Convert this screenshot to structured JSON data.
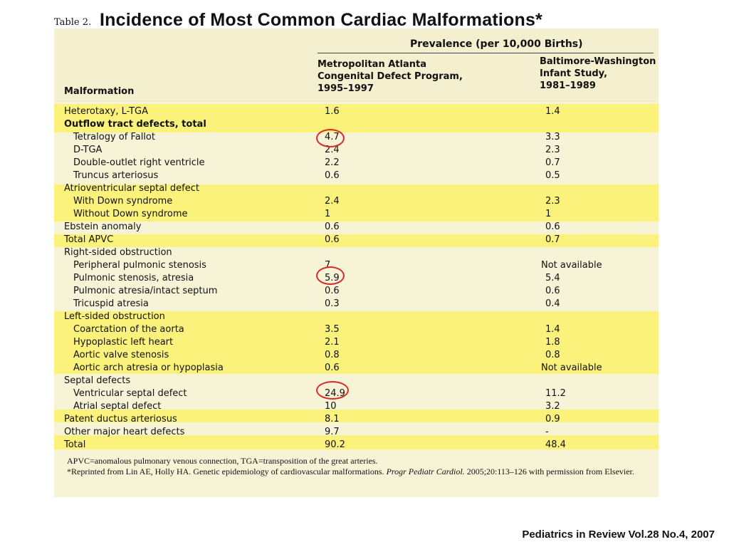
{
  "title": {
    "prefix": "Table 2.",
    "main": "Incidence of Most Common Cardiac Malformations*"
  },
  "header": {
    "prevalence": "Prevalence (per 10,000 Births)",
    "malformation": "Malformation",
    "col1": [
      "Metropolitan Atlanta",
      "Congenital Defect Program,",
      "1995–1997"
    ],
    "col2": [
      "Baltimore-Washington",
      "Infant Study,",
      "1981–1989"
    ]
  },
  "rows": [
    {
      "name": "Heterotaxy, L-TGA",
      "v1": "1.6",
      "v2": "1.4",
      "type": "item"
    },
    {
      "name": "Outflow tract defects, total",
      "v1": "",
      "v2": "",
      "type": "group"
    },
    {
      "name": "Tetralogy of Fallot",
      "v1": "4.7",
      "v2": "3.3",
      "type": "sub"
    },
    {
      "name": "D-TGA",
      "v1": "2.4",
      "v2": "2.3",
      "type": "sub"
    },
    {
      "name": "Double-outlet right ventricle",
      "v1": "2.2",
      "v2": "0.7",
      "type": "sub"
    },
    {
      "name": "Truncus arteriosus",
      "v1": "0.6",
      "v2": "0.5",
      "type": "sub"
    },
    {
      "name": "Atrioventricular septal defect",
      "v1": "",
      "v2": "",
      "type": "item"
    },
    {
      "name": "With Down syndrome",
      "v1": "2.4",
      "v2": "2.3",
      "type": "sub"
    },
    {
      "name": "Without Down syndrome",
      "v1": "1",
      "v2": "1",
      "type": "sub"
    },
    {
      "name": "Ebstein anomaly",
      "v1": "0.6",
      "v2": "0.6",
      "type": "item"
    },
    {
      "name": "Total APVC",
      "v1": "0.6",
      "v2": "0.7",
      "type": "item"
    },
    {
      "name": "Right-sided obstruction",
      "v1": "",
      "v2": "",
      "type": "item"
    },
    {
      "name": "Peripheral pulmonic stenosis",
      "v1": "7",
      "v2": "Not available",
      "type": "sub"
    },
    {
      "name": "Pulmonic stenosis, atresia",
      "v1": "5.9",
      "v2": "5.4",
      "type": "sub"
    },
    {
      "name": "Pulmonic atresia/intact septum",
      "v1": "0.6",
      "v2": "0.6",
      "type": "sub"
    },
    {
      "name": "Tricuspid atresia",
      "v1": "0.3",
      "v2": "0.4",
      "type": "sub"
    },
    {
      "name": "Left-sided obstruction",
      "v1": "",
      "v2": "",
      "type": "item"
    },
    {
      "name": "Coarctation of the aorta",
      "v1": "3.5",
      "v2": "1.4",
      "type": "sub"
    },
    {
      "name": "Hypoplastic left heart",
      "v1": "2.1",
      "v2": "1.8",
      "type": "sub"
    },
    {
      "name": "Aortic valve stenosis",
      "v1": "0.8",
      "v2": "0.8",
      "type": "sub"
    },
    {
      "name": "Aortic arch atresia or hypoplasia",
      "v1": "0.6",
      "v2": "Not available",
      "type": "sub"
    },
    {
      "name": "Septal defects",
      "v1": "",
      "v2": "",
      "type": "item"
    },
    {
      "name": "Ventricular septal defect",
      "v1": "24.9",
      "v2": "11.2",
      "type": "sub"
    },
    {
      "name": "Atrial septal defect",
      "v1": "10",
      "v2": "3.2",
      "type": "sub"
    },
    {
      "name": "Patent ductus arteriosus",
      "v1": "8.1",
      "v2": "0.9",
      "type": "item"
    },
    {
      "name": "Other major heart defects",
      "v1": "9.7",
      "v2": "-",
      "type": "item"
    },
    {
      "name": "Total",
      "v1": "90.2",
      "v2": "48.4",
      "type": "item"
    }
  ],
  "footnotes": {
    "abbrev": "APVC=anomalous pulmonary venous connection, TGA=transposition of the great arteries.",
    "reprint_a": "*Reprinted from Lin AE, Holly HA. Genetic epidemiology of cardiovascular malformations. ",
    "reprint_journal": "Progr Pediatr Cardiol.",
    "reprint_b": " 2005;20:113–126 with permission from Elsevier."
  },
  "citation": "Pediatrics in Review Vol.28 No.4, 2007",
  "colors": {
    "band": "#fbf27c",
    "paper": "#f6f3d6",
    "circle": "#d62a2a"
  }
}
